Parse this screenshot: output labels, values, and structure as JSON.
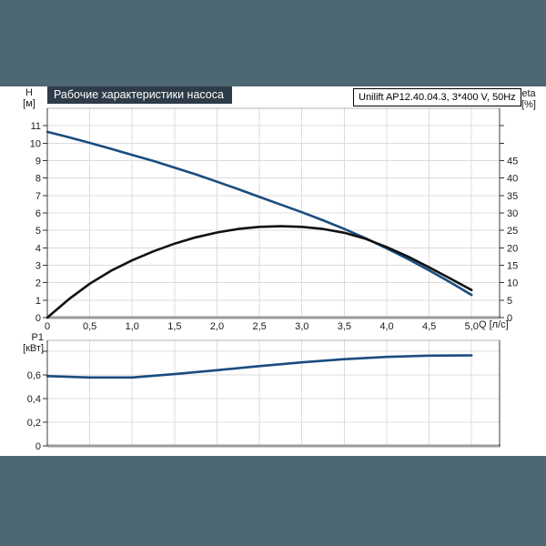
{
  "page": {
    "background_color": "#4d6872",
    "panel_color": "#ffffff"
  },
  "header": {
    "title": "Рабочие характеристики насоса",
    "title_bg": "#2d3c48",
    "title_color": "#ffffff",
    "pump_label": "Unilift AP12.40.04.3, 3*400 V, 50Hz"
  },
  "chart_data": [
    {
      "type": "line",
      "title": "Рабочие характеристики насоса",
      "grid": true,
      "legend": false,
      "x_axis": {
        "label": "Q [л/с]",
        "min": 0,
        "max": 5.33,
        "tick_values": [
          0,
          0.5,
          1.0,
          1.5,
          2.0,
          2.5,
          3.0,
          3.5,
          4.0,
          4.5,
          5.0
        ],
        "tick_labels": [
          "0",
          "0,5",
          "1,0",
          "1,5",
          "2,0",
          "2,5",
          "3,0",
          "3,5",
          "4,0",
          "4,5",
          "5,0"
        ]
      },
      "y_left": {
        "name": "H",
        "unit": "[м]",
        "min": 0,
        "max": 12,
        "tick_values": [
          0,
          1,
          2,
          3,
          4,
          5,
          6,
          7,
          8,
          9,
          10,
          11
        ],
        "tick_labels": [
          "0",
          "1",
          "2",
          "3",
          "4",
          "5",
          "6",
          "7",
          "8",
          "9",
          "10",
          "11"
        ]
      },
      "y_right": {
        "name": "eta",
        "unit": "[%]",
        "min": 0,
        "max": 60,
        "tick_values": [
          0,
          5,
          10,
          15,
          20,
          25,
          30,
          35,
          40,
          45,
          50,
          55
        ],
        "tick_labels": [
          "0",
          "5",
          "10",
          "15",
          "20",
          "25",
          "30",
          "35",
          "40",
          "45",
          "",
          ""
        ]
      },
      "series": [
        {
          "name": "head-curve-H-Q",
          "axis": "left",
          "color": "#1a4c80",
          "width": 2.6,
          "x": [
            0,
            0.25,
            0.5,
            0.75,
            1,
            1.25,
            1.5,
            1.75,
            2,
            2.25,
            2.5,
            2.75,
            3,
            3.25,
            3.5,
            3.75,
            4,
            4.25,
            4.5,
            4.75,
            5
          ],
          "y": [
            10.65,
            10.34,
            10.02,
            9.68,
            9.33,
            8.98,
            8.6,
            8.21,
            7.79,
            7.36,
            6.92,
            6.48,
            6.04,
            5.58,
            5.08,
            4.55,
            3.97,
            3.36,
            2.71,
            2.02,
            1.3
          ]
        },
        {
          "name": "efficiency-curve-eta-Q",
          "axis": "right",
          "color": "#111111",
          "width": 2.6,
          "x": [
            0,
            0.25,
            0.5,
            0.75,
            1,
            1.25,
            1.5,
            1.75,
            2,
            2.25,
            2.5,
            2.75,
            3,
            3.25,
            3.5,
            3.75,
            4,
            4.25,
            4.5,
            4.75,
            5
          ],
          "y": [
            0,
            5.2,
            9.7,
            13.4,
            16.4,
            19.0,
            21.2,
            23.0,
            24.4,
            25.4,
            26.0,
            26.2,
            26.0,
            25.4,
            24.3,
            22.6,
            20.2,
            17.5,
            14.4,
            11.2,
            7.9
          ]
        }
      ]
    },
    {
      "type": "line",
      "grid": true,
      "legend": false,
      "x_axis": {
        "label": "",
        "min": 0,
        "max": 5.33,
        "tick_values": [
          0,
          0.5,
          1.0,
          1.5,
          2.0,
          2.5,
          3.0,
          3.5,
          4.0,
          4.5,
          5.0
        ],
        "tick_labels": []
      },
      "y_left": {
        "name": "P1",
        "unit": "[кВт]",
        "min": 0,
        "max": 0.892,
        "tick_values": [
          0,
          0.2,
          0.4,
          0.6,
          0.8
        ],
        "tick_labels": [
          "0",
          "0,2",
          "0,4",
          "0,6",
          ""
        ]
      },
      "series": [
        {
          "name": "power-curve-P1-Q",
          "axis": "left",
          "color": "#1a4c80",
          "width": 2.6,
          "x": [
            0,
            0.5,
            1,
            1.5,
            2,
            2.5,
            3,
            3.5,
            4,
            4.5,
            5
          ],
          "y": [
            0.59,
            0.578,
            0.578,
            0.607,
            0.64,
            0.674,
            0.706,
            0.733,
            0.752,
            0.763,
            0.765
          ]
        }
      ]
    }
  ],
  "style": {
    "grid_color": "#dcdcdc",
    "frame_top_color": "#b4b4b4",
    "frame_side_color": "#3d3d3d",
    "frame_bottom_color": "#9a9a9a",
    "tick_color": "#333333",
    "label_color": "#1a1a1a"
  }
}
